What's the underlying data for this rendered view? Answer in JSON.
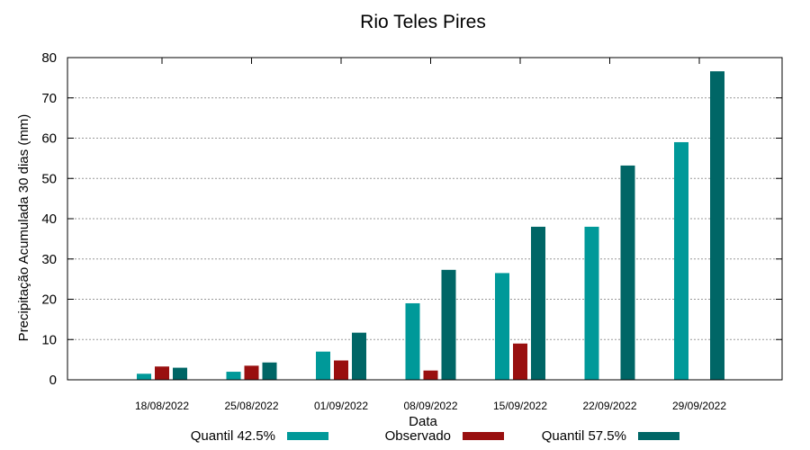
{
  "chart_data": {
    "type": "bar",
    "title": "Rio Teles Pires",
    "xlabel": "Data",
    "ylabel": "Precipitação Acumulada 30 dias (mm)",
    "ylim": [
      0,
      80
    ],
    "yticks": [
      0,
      10,
      20,
      30,
      40,
      50,
      60,
      70,
      80
    ],
    "grid": true,
    "legend_position": "bottom",
    "categories": [
      "18/08/2022",
      "25/08/2022",
      "01/09/2022",
      "08/09/2022",
      "15/09/2022",
      "22/09/2022",
      "29/09/2022"
    ],
    "series": [
      {
        "name": "Quantil 42.5%",
        "color": "#009999",
        "values": [
          1.5,
          2.0,
          7.0,
          19.0,
          26.5,
          38.0,
          59.0
        ]
      },
      {
        "name": "Observado",
        "color": "#990f0f",
        "values": [
          3.3,
          3.5,
          4.8,
          2.3,
          9.0,
          null,
          null
        ]
      },
      {
        "name": "Quantil 57.5%",
        "color": "#006666",
        "values": [
          3.0,
          4.3,
          11.7,
          27.3,
          38.0,
          53.2,
          76.6
        ]
      }
    ]
  }
}
